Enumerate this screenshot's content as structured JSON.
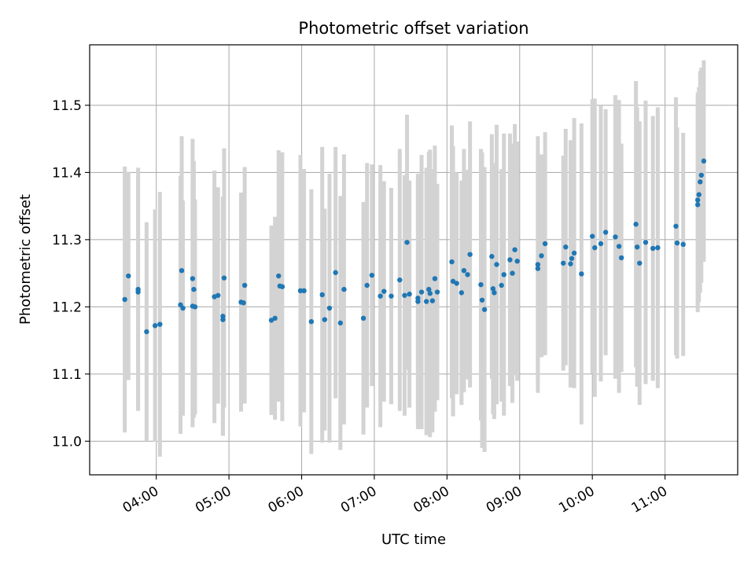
{
  "chart_data": {
    "type": "scatter",
    "title": "Photometric offset variation",
    "xlabel": "UTC time",
    "ylabel": "Photometric offset",
    "x_unit": "UTC time (HH:MM)",
    "xlim": [
      "03:05",
      "12:00"
    ],
    "ylim": [
      10.95,
      11.59
    ],
    "xticks": [
      "04:00",
      "05:00",
      "06:00",
      "07:00",
      "08:00",
      "09:00",
      "10:00",
      "11:00"
    ],
    "yticks": [
      11.0,
      11.1,
      11.2,
      11.3,
      11.4,
      11.5
    ],
    "ytick_labels": [
      "11.0",
      "11.1",
      "11.2",
      "11.3",
      "11.4",
      "11.5"
    ],
    "grid": true,
    "colors": {
      "points": "#1f77b4",
      "errorbars": "#d3d3d3",
      "grid": "#b0b0b0"
    },
    "series": [
      {
        "x": [
          "03:34",
          "03:37",
          "03:45",
          "03:45",
          "03:52",
          "03:59",
          "04:03",
          "04:20",
          "04:21",
          "04:22",
          "04:30",
          "04:30",
          "04:31",
          "04:32",
          "04:48",
          "04:51",
          "04:55",
          "04:55",
          "04:56",
          "05:10",
          "05:12",
          "05:13",
          "05:35",
          "05:38",
          "05:41",
          "05:42",
          "05:44",
          "05:59",
          "06:02",
          "06:08",
          "06:17",
          "06:19",
          "06:23",
          "06:28",
          "06:32",
          "06:35",
          "06:51",
          "06:54",
          "06:58",
          "07:05",
          "07:08",
          "07:14",
          "07:21",
          "07:25",
          "07:27",
          "07:29",
          "07:36",
          "07:36",
          "07:39",
          "07:43",
          "07:45",
          "07:46",
          "07:48",
          "07:50",
          "07:52",
          "08:04",
          "08:05",
          "08:08",
          "08:12",
          "08:14",
          "08:17",
          "08:19",
          "08:28",
          "08:29",
          "08:31",
          "08:37",
          "08:38",
          "08:39",
          "08:41",
          "08:45",
          "08:47",
          "08:52",
          "08:54",
          "08:56",
          "08:58",
          "09:15",
          "09:15",
          "09:18",
          "09:21",
          "09:36",
          "09:38",
          "09:42",
          "09:43",
          "09:45",
          "09:51",
          "10:00",
          "10:02",
          "10:07",
          "10:11",
          "10:19",
          "10:22",
          "10:24",
          "10:36",
          "10:37",
          "10:39",
          "10:44",
          "10:50",
          "10:54",
          "11:09",
          "11:10",
          "11:15",
          "11:27",
          "11:27",
          "11:28",
          "11:29",
          "11:30",
          "11:32"
        ],
        "y": [
          11.211,
          11.246,
          11.226,
          11.222,
          11.163,
          11.172,
          11.174,
          11.203,
          11.254,
          11.198,
          11.201,
          11.242,
          11.226,
          11.2,
          11.215,
          11.217,
          11.181,
          11.186,
          11.243,
          11.207,
          11.206,
          11.232,
          11.18,
          11.183,
          11.246,
          11.231,
          11.23,
          11.224,
          11.224,
          11.178,
          11.218,
          11.181,
          11.198,
          11.251,
          11.176,
          11.226,
          11.183,
          11.232,
          11.247,
          11.216,
          11.223,
          11.216,
          11.24,
          11.217,
          11.296,
          11.219,
          11.213,
          11.208,
          11.222,
          11.208,
          11.226,
          11.22,
          11.209,
          11.242,
          11.222,
          11.267,
          11.238,
          11.235,
          11.221,
          11.254,
          11.248,
          11.278,
          11.233,
          11.21,
          11.196,
          11.275,
          11.227,
          11.221,
          11.263,
          11.232,
          11.248,
          11.27,
          11.25,
          11.285,
          11.268,
          11.263,
          11.257,
          11.276,
          11.294,
          11.265,
          11.289,
          11.264,
          11.272,
          11.28,
          11.249,
          11.305,
          11.288,
          11.294,
          11.311,
          11.304,
          11.29,
          11.273,
          11.323,
          11.289,
          11.265,
          11.296,
          11.287,
          11.288,
          11.32,
          11.295,
          11.293,
          11.352,
          11.359,
          11.367,
          11.386,
          11.396,
          11.417
        ],
        "err": [
          0.198,
          0.155,
          0.181,
          0.171,
          0.163,
          0.173,
          0.197,
          0.192,
          0.2,
          0.16,
          0.18,
          0.208,
          0.191,
          0.16,
          0.188,
          0.161,
          0.172,
          0.178,
          0.193,
          0.163,
          0.149,
          0.176,
          0.141,
          0.151,
          0.187,
          0.17,
          0.2,
          0.202,
          0.181,
          0.197,
          0.22,
          0.165,
          0.2,
          0.187,
          0.189,
          0.201,
          0.173,
          0.182,
          0.165,
          0.195,
          0.164,
          0.161,
          0.195,
          0.179,
          0.19,
          0.169,
          0.178,
          0.19,
          0.204,
          0.199,
          0.205,
          0.214,
          0.196,
          0.198,
          0.161,
          0.203,
          0.201,
          0.165,
          0.167,
          0.181,
          0.156,
          0.198,
          0.202,
          0.22,
          0.212,
          0.182,
          0.187,
          0.188,
          0.208,
          0.173,
          0.21,
          0.188,
          0.193,
          0.187,
          0.178,
          0.191,
          0.165,
          0.151,
          0.166,
          0.16,
          0.176,
          0.184,
          0.176,
          0.201,
          0.224,
          0.204,
          0.222,
          0.205,
          0.183,
          0.211,
          0.218,
          0.17,
          0.213,
          0.208,
          0.211,
          0.211,
          0.197,
          0.209,
          0.192,
          0.172,
          0.166,
          0.16,
          0.16,
          0.16,
          0.165,
          0.16,
          0.15
        ]
      }
    ]
  }
}
